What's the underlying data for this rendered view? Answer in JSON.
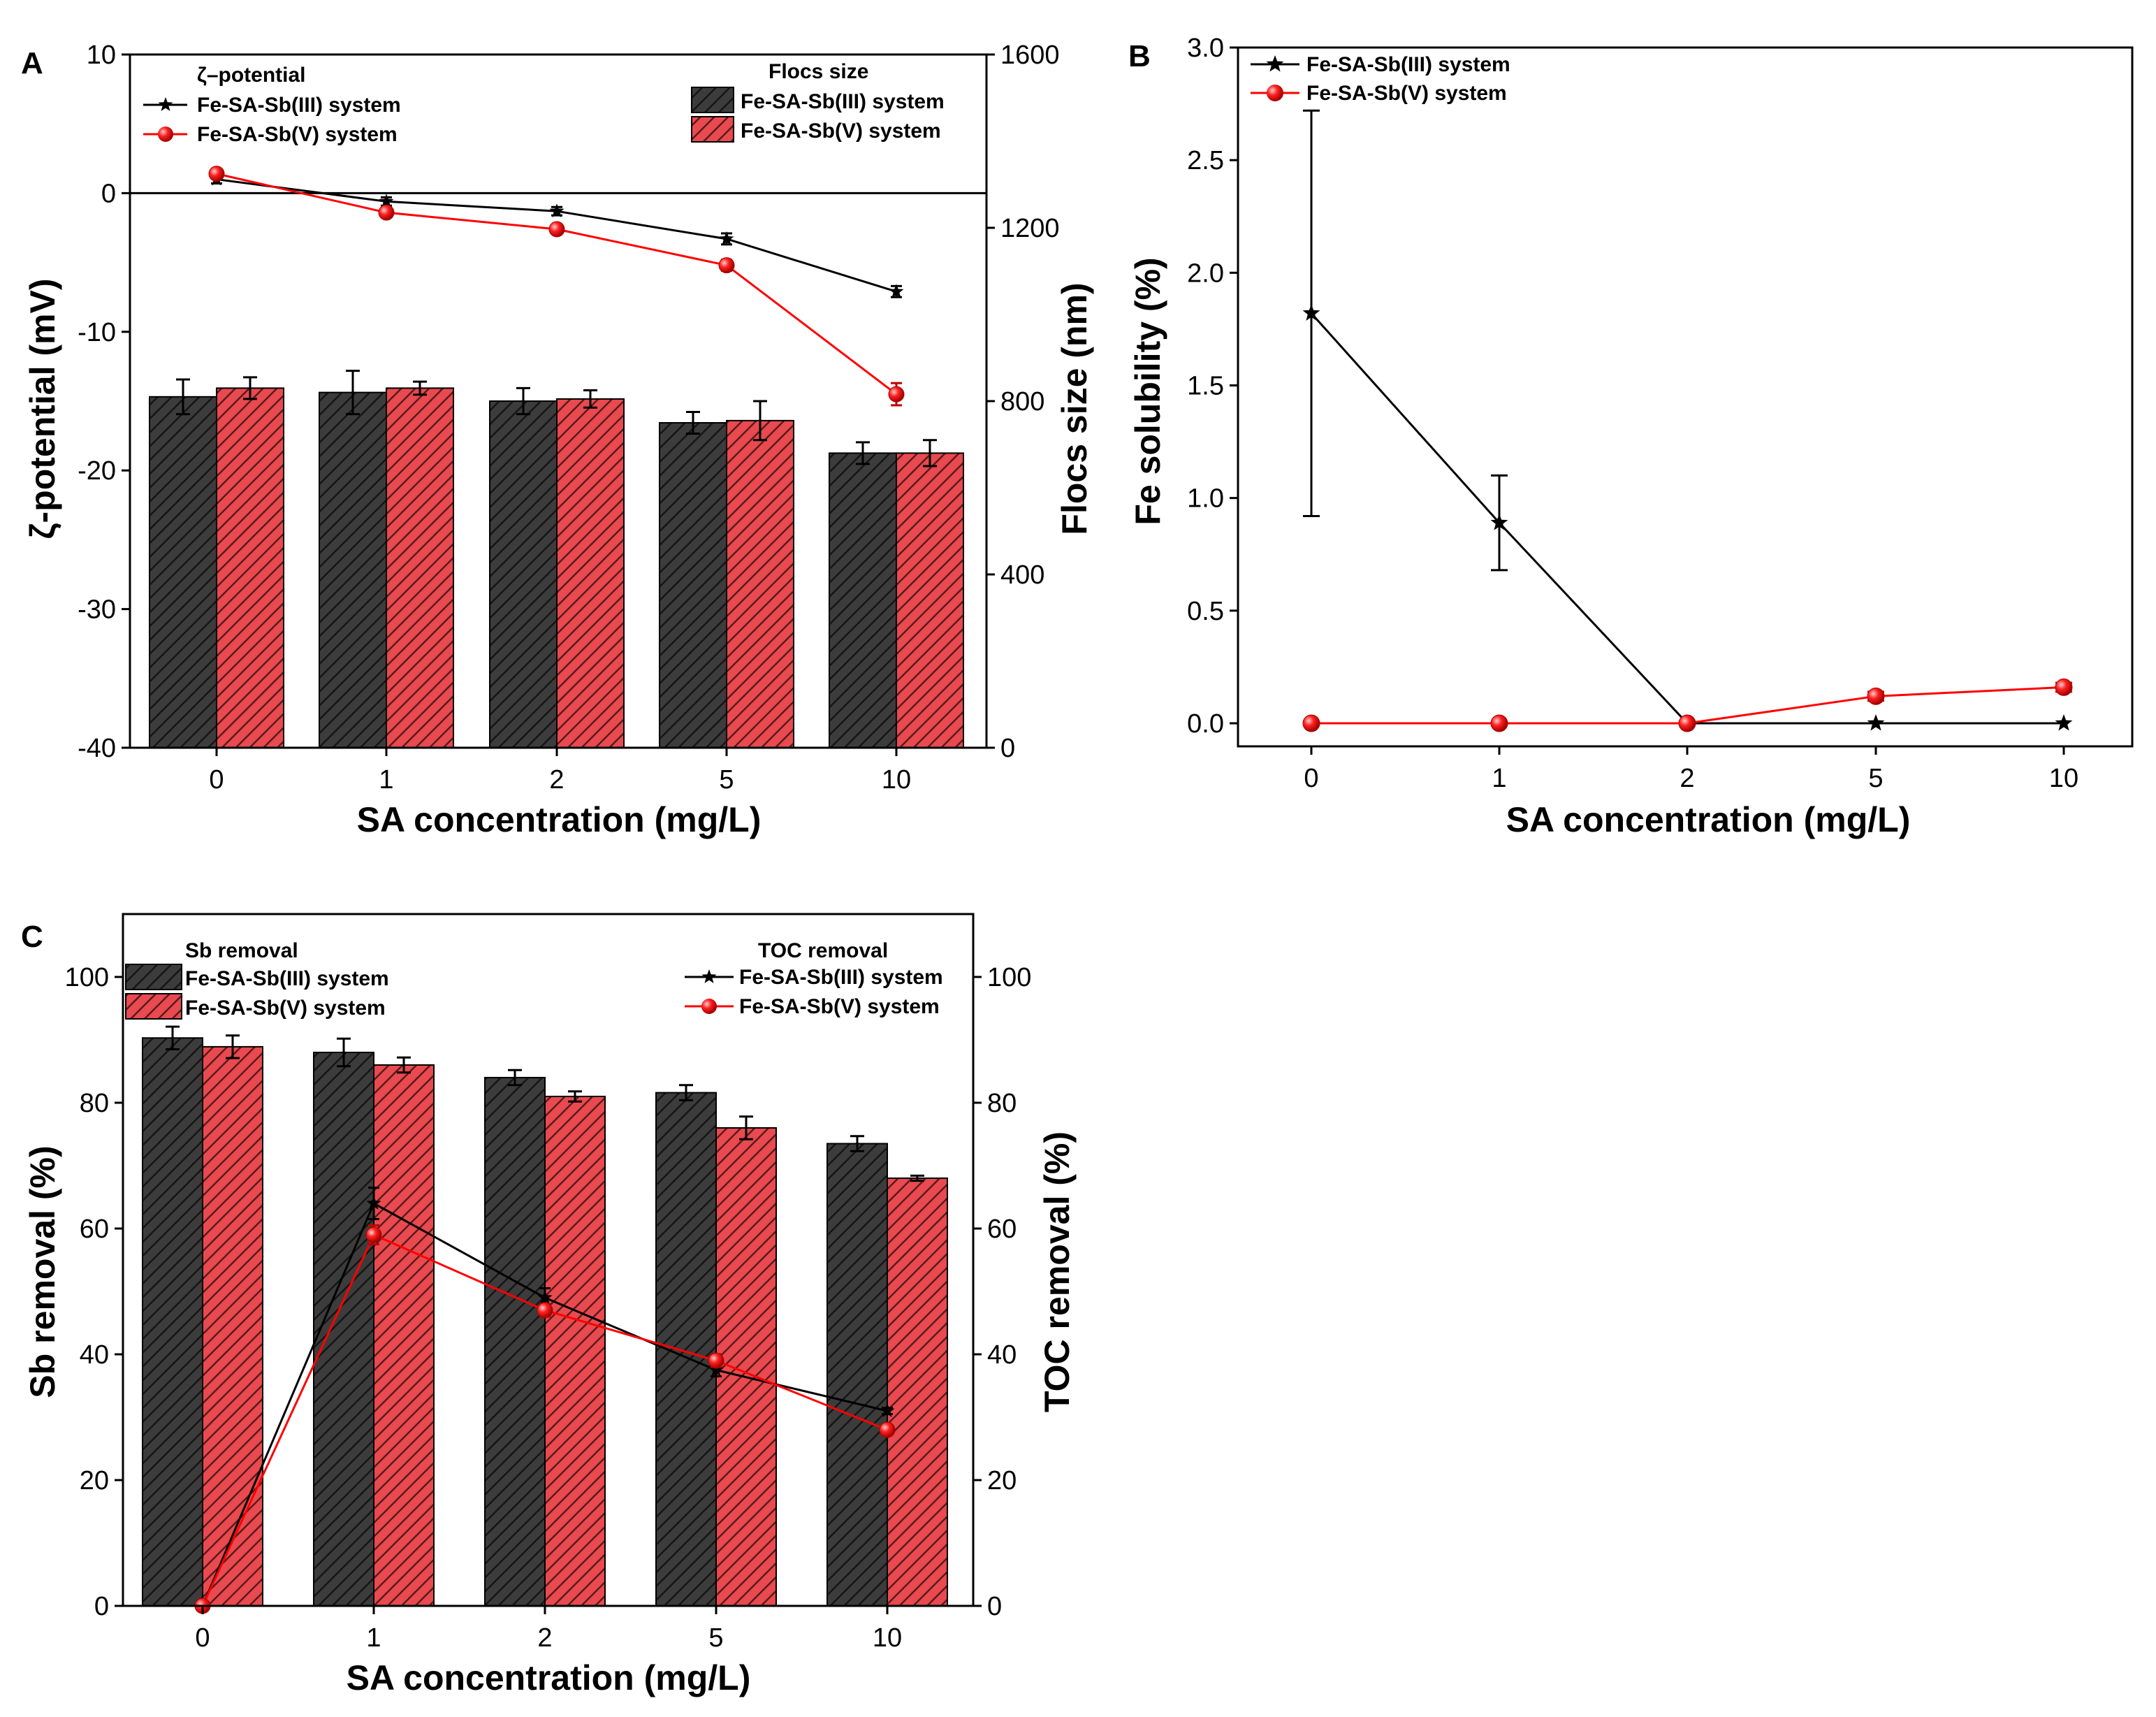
{
  "colors": {
    "dark": "#3c3c3c",
    "red": "#e84a4f",
    "line_black": "#000000",
    "line_red": "#ff0000"
  },
  "chart_data": [
    {
      "panel": "A",
      "type": "bar",
      "secondary_type": "line",
      "categories": [
        "0",
        "1",
        "2",
        "5",
        "10"
      ],
      "xlabel": "SA concentration (mg/L)",
      "ylabel_left": "ζ-potential (mV)",
      "ylabel_right": "Flocs size (nm)",
      "ylim_left": [
        -40,
        10
      ],
      "yticks_left": [
        "10",
        "0",
        "-10",
        "-20",
        "-30",
        "-40"
      ],
      "ylim_right": [
        0,
        1600
      ],
      "yticks_right": [
        "1600",
        "1200",
        "800",
        "400",
        "0"
      ],
      "bar_legend_title": "Flocs size",
      "line_legend_title": "ζ–potential",
      "bar_series": [
        {
          "name": "Fe-SA-Sb(III) system",
          "values": [
            810,
            820,
            800,
            750,
            680
          ],
          "errors": [
            40,
            50,
            30,
            25,
            25
          ]
        },
        {
          "name": "Fe-SA-Sb(V) system",
          "values": [
            830,
            830,
            805,
            755,
            680
          ],
          "errors": [
            25,
            15,
            20,
            45,
            30
          ]
        }
      ],
      "line_series": [
        {
          "name": "Fe-SA-Sb(III) system",
          "values": [
            1.0,
            -0.6,
            -1.3,
            -3.3,
            -7.1
          ],
          "errors": [
            0.3,
            0.3,
            0.3,
            0.4,
            0.4
          ]
        },
        {
          "name": "Fe-SA-Sb(V) system",
          "values": [
            1.4,
            -1.4,
            -2.6,
            -5.2,
            -14.5
          ],
          "errors": [
            0.3,
            0.3,
            0.3,
            0.4,
            0.8
          ]
        }
      ]
    },
    {
      "panel": "B",
      "type": "line",
      "categories": [
        "0",
        "1",
        "2",
        "5",
        "10"
      ],
      "xlabel": "SA concentration (mg/L)",
      "ylabel": "Fe solubility (%)",
      "ylim": [
        -0.1,
        3.0
      ],
      "yticks": [
        "3.0",
        "2.5",
        "2.0",
        "1.5",
        "1.0",
        "0.5",
        "0.0"
      ],
      "series": [
        {
          "name": "Fe-SA-Sb(III) system",
          "values": [
            1.82,
            0.89,
            0.0,
            0.0,
            0.0
          ],
          "errors": [
            0.9,
            0.21,
            0,
            0,
            0
          ]
        },
        {
          "name": "Fe-SA-Sb(V) system",
          "values": [
            0.0,
            0.0,
            0.0,
            0.12,
            0.16
          ],
          "errors": [
            0,
            0,
            0,
            0.02,
            0.02
          ]
        }
      ]
    },
    {
      "panel": "C",
      "type": "bar",
      "secondary_type": "line",
      "categories": [
        "0",
        "1",
        "2",
        "5",
        "10"
      ],
      "xlabel": "SA concentration (mg/L)",
      "ylabel_left": "Sb removal (%)",
      "ylabel_right": "TOC removal (%)",
      "ylim_left": [
        0,
        110
      ],
      "yticks_left": [
        "100",
        "80",
        "60",
        "40",
        "20",
        "0"
      ],
      "ylim_right": [
        0,
        110
      ],
      "yticks_right": [
        "100",
        "80",
        "60",
        "40",
        "20",
        "0"
      ],
      "bar_legend_title": "Sb removal",
      "line_legend_title": "TOC removal",
      "bar_series": [
        {
          "name": "Fe-SA-Sb(III) system",
          "values": [
            90.3,
            88.0,
            84.0,
            81.6,
            73.5
          ],
          "errors": [
            1.8,
            2.2,
            1.2,
            1.2,
            1.2
          ]
        },
        {
          "name": "Fe-SA-Sb(V) system",
          "values": [
            88.9,
            86.0,
            81.0,
            76.0,
            68.0
          ],
          "errors": [
            1.8,
            1.2,
            0.8,
            1.8,
            0.4
          ]
        }
      ],
      "line_series": [
        {
          "name": "Fe-SA-Sb(III) system",
          "values": [
            0,
            64,
            49,
            37.5,
            31
          ],
          "errors": [
            0,
            2.5,
            1.5,
            1.0,
            0.5
          ]
        },
        {
          "name": "Fe-SA-Sb(V) system",
          "values": [
            0,
            59,
            47,
            39,
            28
          ],
          "errors": [
            0,
            1.5,
            1.0,
            1.0,
            0.5
          ]
        }
      ]
    }
  ]
}
